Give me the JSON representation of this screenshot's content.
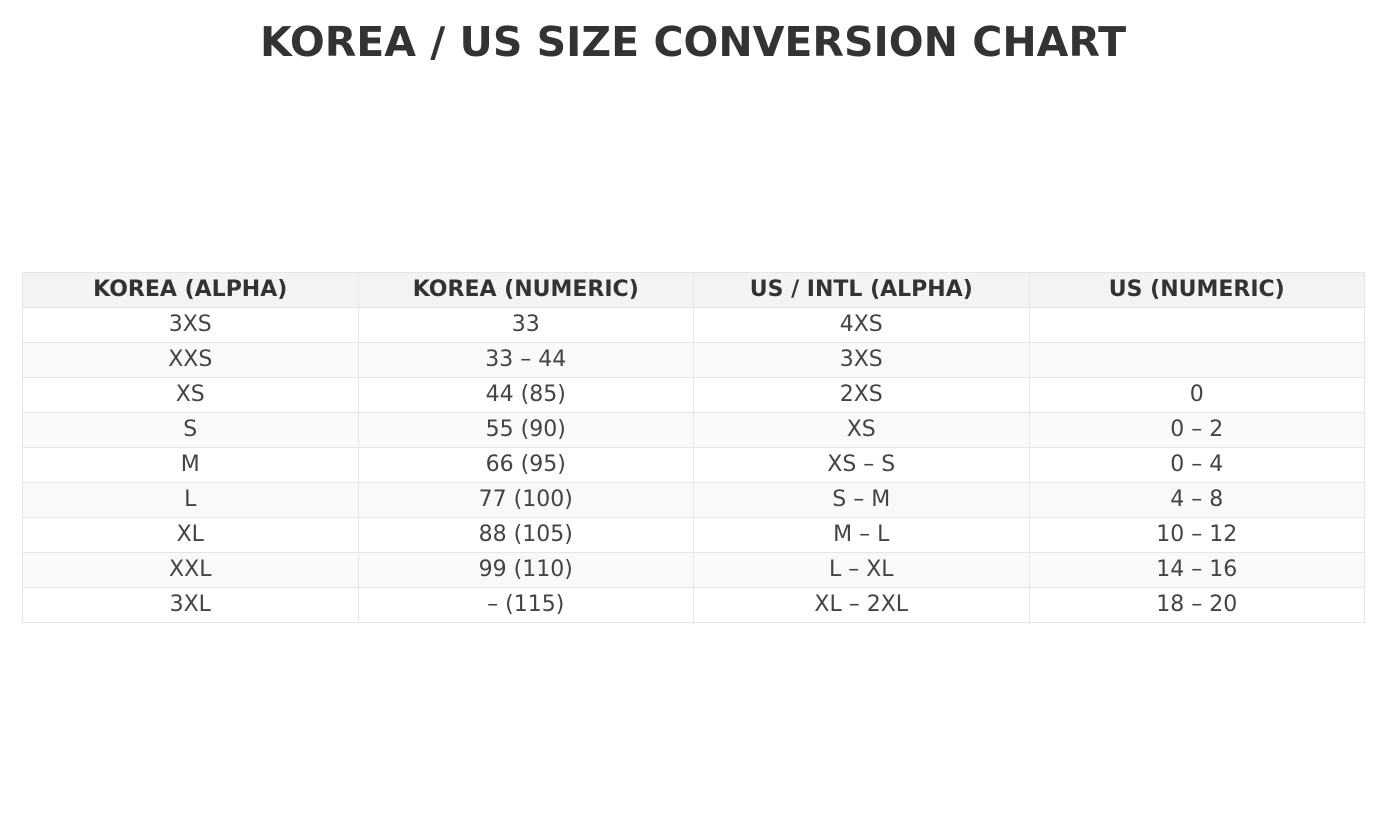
{
  "chart_data": {
    "type": "table",
    "title": "KOREA / US SIZE CONVERSION CHART",
    "columns": [
      "KOREA (ALPHA)",
      "KOREA (NUMERIC)",
      "US / INTL (ALPHA)",
      "US (NUMERIC)"
    ],
    "rows": [
      [
        "3XS",
        "33",
        "4XS",
        ""
      ],
      [
        "XXS",
        "33 – 44",
        "3XS",
        ""
      ],
      [
        "XS",
        "44 (85)",
        "2XS",
        "0"
      ],
      [
        "S",
        "55 (90)",
        "XS",
        "0 – 2"
      ],
      [
        "M",
        "66 (95)",
        "XS – S",
        "0 – 4"
      ],
      [
        "L",
        "77 (100)",
        "S – M",
        "4 – 8"
      ],
      [
        "XL",
        "88 (105)",
        "M – L",
        "10 – 12"
      ],
      [
        "XXL",
        "99 (110)",
        "L – XL",
        "14 – 16"
      ],
      [
        "3XL",
        "– (115)",
        "XL – 2XL",
        "18 – 20"
      ]
    ],
    "colors": {
      "header_bg": "#f3f3f3",
      "stripe_bg": "#f9f9f9",
      "border": "#e6e6e6",
      "text": "#444444"
    }
  }
}
